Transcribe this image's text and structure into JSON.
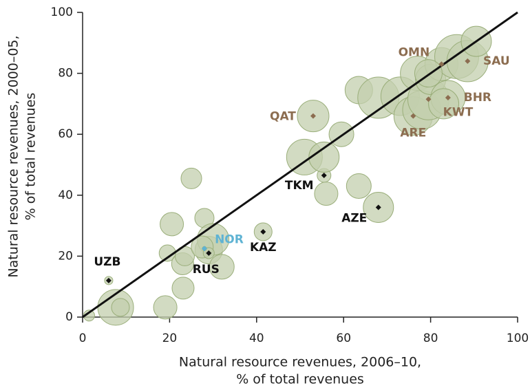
{
  "chart_data": {
    "type": "scatter",
    "xlabel": [
      "Natural resource revenues, 2006–10,",
      "% of total revenues"
    ],
    "ylabel": [
      "Natural resource revenues, 2000–05,",
      "% of total revenues"
    ],
    "xlim": [
      0,
      100
    ],
    "ylim": [
      0,
      100
    ],
    "xticks": [
      0,
      20,
      40,
      60,
      80,
      100
    ],
    "yticks": [
      0,
      20,
      40,
      60,
      80,
      100
    ],
    "diagonal": true,
    "color": "#c3cfae",
    "edge_color": "#9aae7a",
    "x": [
      7.6,
      8.7,
      1.5,
      19,
      23.1,
      19.5,
      20.5,
      25,
      28,
      23,
      23.5,
      29,
      30,
      32,
      27.5,
      6,
      29,
      28,
      41.5,
      55.5,
      51,
      55.5,
      56,
      59.5,
      63.5,
      53,
      68,
      63.5,
      68,
      73,
      76,
      78,
      77,
      79.5,
      80,
      82.5,
      84,
      83,
      86,
      88.5,
      90.5,
      79.5
    ],
    "values": [
      3.2,
      3.2,
      0.5,
      3.2,
      9.5,
      21,
      30.5,
      45.5,
      32.5,
      17.5,
      20,
      22,
      25.5,
      16.5,
      23,
      12,
      21,
      22.5,
      28,
      46.5,
      52.5,
      52.5,
      40.5,
      60,
      43,
      66,
      36,
      74.5,
      72,
      72.5,
      66,
      68,
      80,
      71.5,
      78,
      83,
      72,
      70,
      85.5,
      84,
      90.5,
      80
    ],
    "sizes": [
      26,
      13,
      8,
      17,
      16,
      12,
      17,
      15,
      14,
      16,
      14,
      20,
      23,
      18,
      16,
      6,
      8,
      3,
      13,
      10,
      26,
      22,
      17,
      18,
      18,
      23,
      22,
      20,
      30,
      28,
      28,
      28,
      25,
      30,
      22,
      24,
      25,
      22,
      32,
      30,
      22,
      20
    ],
    "labels": [
      null,
      null,
      null,
      null,
      null,
      null,
      null,
      null,
      null,
      null,
      null,
      null,
      null,
      null,
      null,
      "UZB",
      "RUS",
      "NOR",
      "KAZ",
      "TKM",
      null,
      null,
      null,
      null,
      null,
      "QAT",
      "AZE",
      null,
      null,
      null,
      "ARE",
      null,
      null,
      "KWT",
      null,
      "OMN",
      "BHR",
      null,
      null,
      "SAU",
      null,
      null
    ],
    "label_colors": [
      null,
      null,
      null,
      null,
      null,
      null,
      null,
      null,
      null,
      null,
      null,
      null,
      null,
      null,
      null,
      "#111111",
      "#111111",
      "#5fb3d3",
      "#111111",
      "#111111",
      null,
      null,
      null,
      null,
      null,
      "#8c6d50",
      "#111111",
      null,
      null,
      null,
      "#8c6d50",
      null,
      null,
      "#8c6d50",
      null,
      "#8c6d50",
      "#8c6d50",
      null,
      null,
      "#8c6d50",
      null,
      null
    ]
  }
}
